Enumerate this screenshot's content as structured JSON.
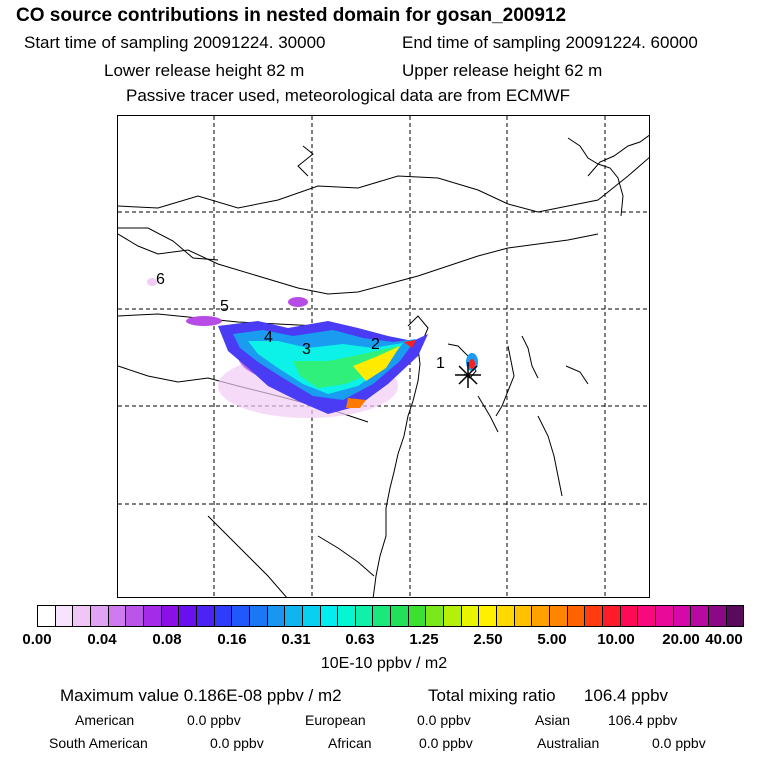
{
  "title": "CO  source contributions in nested domain for gosan_200912",
  "header": {
    "start_label": "Start time of sampling 20091224. 30000",
    "end_label": "End time of sampling 20091224. 60000",
    "lower_release": "Lower release height   82 m",
    "upper_release": "Upper release height   62 m",
    "tracer_note": "Passive tracer used, meteorological data are from ECMWF"
  },
  "map": {
    "region_labels": [
      "1",
      "2",
      "3",
      "4",
      "5",
      "6"
    ],
    "receptor_marker": "asterisk-icon",
    "plume_colors": [
      "#f2ccf7",
      "#b64be6",
      "#4a3cf5",
      "#1a9cf0",
      "#0df2e8",
      "#2ff07a",
      "#ffea00",
      "#ff7a00",
      "#ff1d1d"
    ]
  },
  "colorbar": {
    "tick_labels": [
      "0.00",
      "0.04",
      "0.08",
      "0.16",
      "0.31",
      "0.63",
      "1.25",
      "2.50",
      "5.00",
      "10.00",
      "20.00",
      "40.00"
    ],
    "colors": [
      "#ffffff",
      "#f7e3fb",
      "#efc6f6",
      "#e0a2f2",
      "#cf7aee",
      "#bb55ea",
      "#a42ce8",
      "#8a10e6",
      "#6a10ee",
      "#4c22f5",
      "#2f3cfa",
      "#2058fb",
      "#1a78f5",
      "#1896f1",
      "#10b4ef",
      "#08d0f0",
      "#04ecf0",
      "#06f6d4",
      "#10f0a6",
      "#1ae87a",
      "#22e05a",
      "#3ce030",
      "#7ae81a",
      "#b4f00a",
      "#e8f400",
      "#fff000",
      "#ffd800",
      "#ffc000",
      "#ffa200",
      "#ff8400",
      "#ff6200",
      "#ff3c10",
      "#ff1c2a",
      "#ff0a54",
      "#f80a7e",
      "#ea0a9a",
      "#d40aa8",
      "#b80aa0",
      "#8a0a86",
      "#5a0a5a"
    ],
    "unit": "10E-10 ppbv / m2"
  },
  "summary": {
    "max_label": "Maximum value  0.186E-08 ppbv / m2",
    "total_label": "Total mixing ratio",
    "total_value": "106.4 ppbv"
  },
  "continents": {
    "american_label": "American",
    "american_value": "0.0 ppbv",
    "european_label": "European",
    "european_value": "0.0 ppbv",
    "asian_label": "Asian",
    "asian_value": "106.4 ppbv",
    "south_american_label": "South American",
    "south_american_value": "0.0 ppbv",
    "african_label": "African",
    "african_value": "0.0 ppbv",
    "australian_label": "Australian",
    "australian_value": "0.0 ppbv"
  }
}
